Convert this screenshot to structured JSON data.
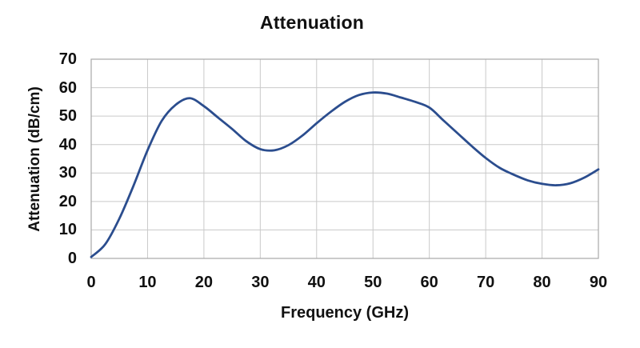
{
  "page": {
    "background": "#ffffff"
  },
  "chart_data": {
    "type": "line",
    "title": "Attenuation",
    "xlabel": "Frequency (GHz)",
    "ylabel": "Attenuation (dB/cm)",
    "xlim": [
      0,
      90
    ],
    "ylim": [
      0,
      70
    ],
    "xticks": [
      0,
      10,
      20,
      30,
      40,
      50,
      60,
      70,
      80,
      90
    ],
    "yticks": [
      0,
      10,
      20,
      30,
      40,
      50,
      60,
      70
    ],
    "grid": true,
    "legend": "none",
    "colors": {
      "line": "#2b4d8e",
      "grid": "#c9c9c9",
      "border": "#a8a8a8",
      "text": "#111111",
      "background": "#ffffff"
    },
    "series": [
      {
        "name": "Attenuation",
        "color": "#2b4d8e",
        "x": [
          0,
          2.5,
          5,
          7.5,
          10,
          12.5,
          15,
          17.5,
          20,
          22.5,
          25,
          27.5,
          30,
          32.5,
          35,
          37.5,
          40,
          42.5,
          45,
          47.5,
          50,
          52.5,
          55,
          57.5,
          60,
          62.5,
          65,
          67.5,
          70,
          72.5,
          75,
          77.5,
          80,
          82.5,
          85,
          87.5,
          90
        ],
        "y": [
          0.5,
          5,
          14,
          25.5,
          38,
          48.3,
          54,
          56.3,
          53.5,
          49.5,
          45.5,
          41.2,
          38.4,
          38.0,
          39.8,
          43.2,
          47.5,
          51.5,
          55,
          57.4,
          58.3,
          57.9,
          56.5,
          55,
          53,
          48.5,
          44,
          39.5,
          35.3,
          31.8,
          29.4,
          27.4,
          26.2,
          25.7,
          26.4,
          28.4,
          31.3
        ]
      }
    ]
  }
}
